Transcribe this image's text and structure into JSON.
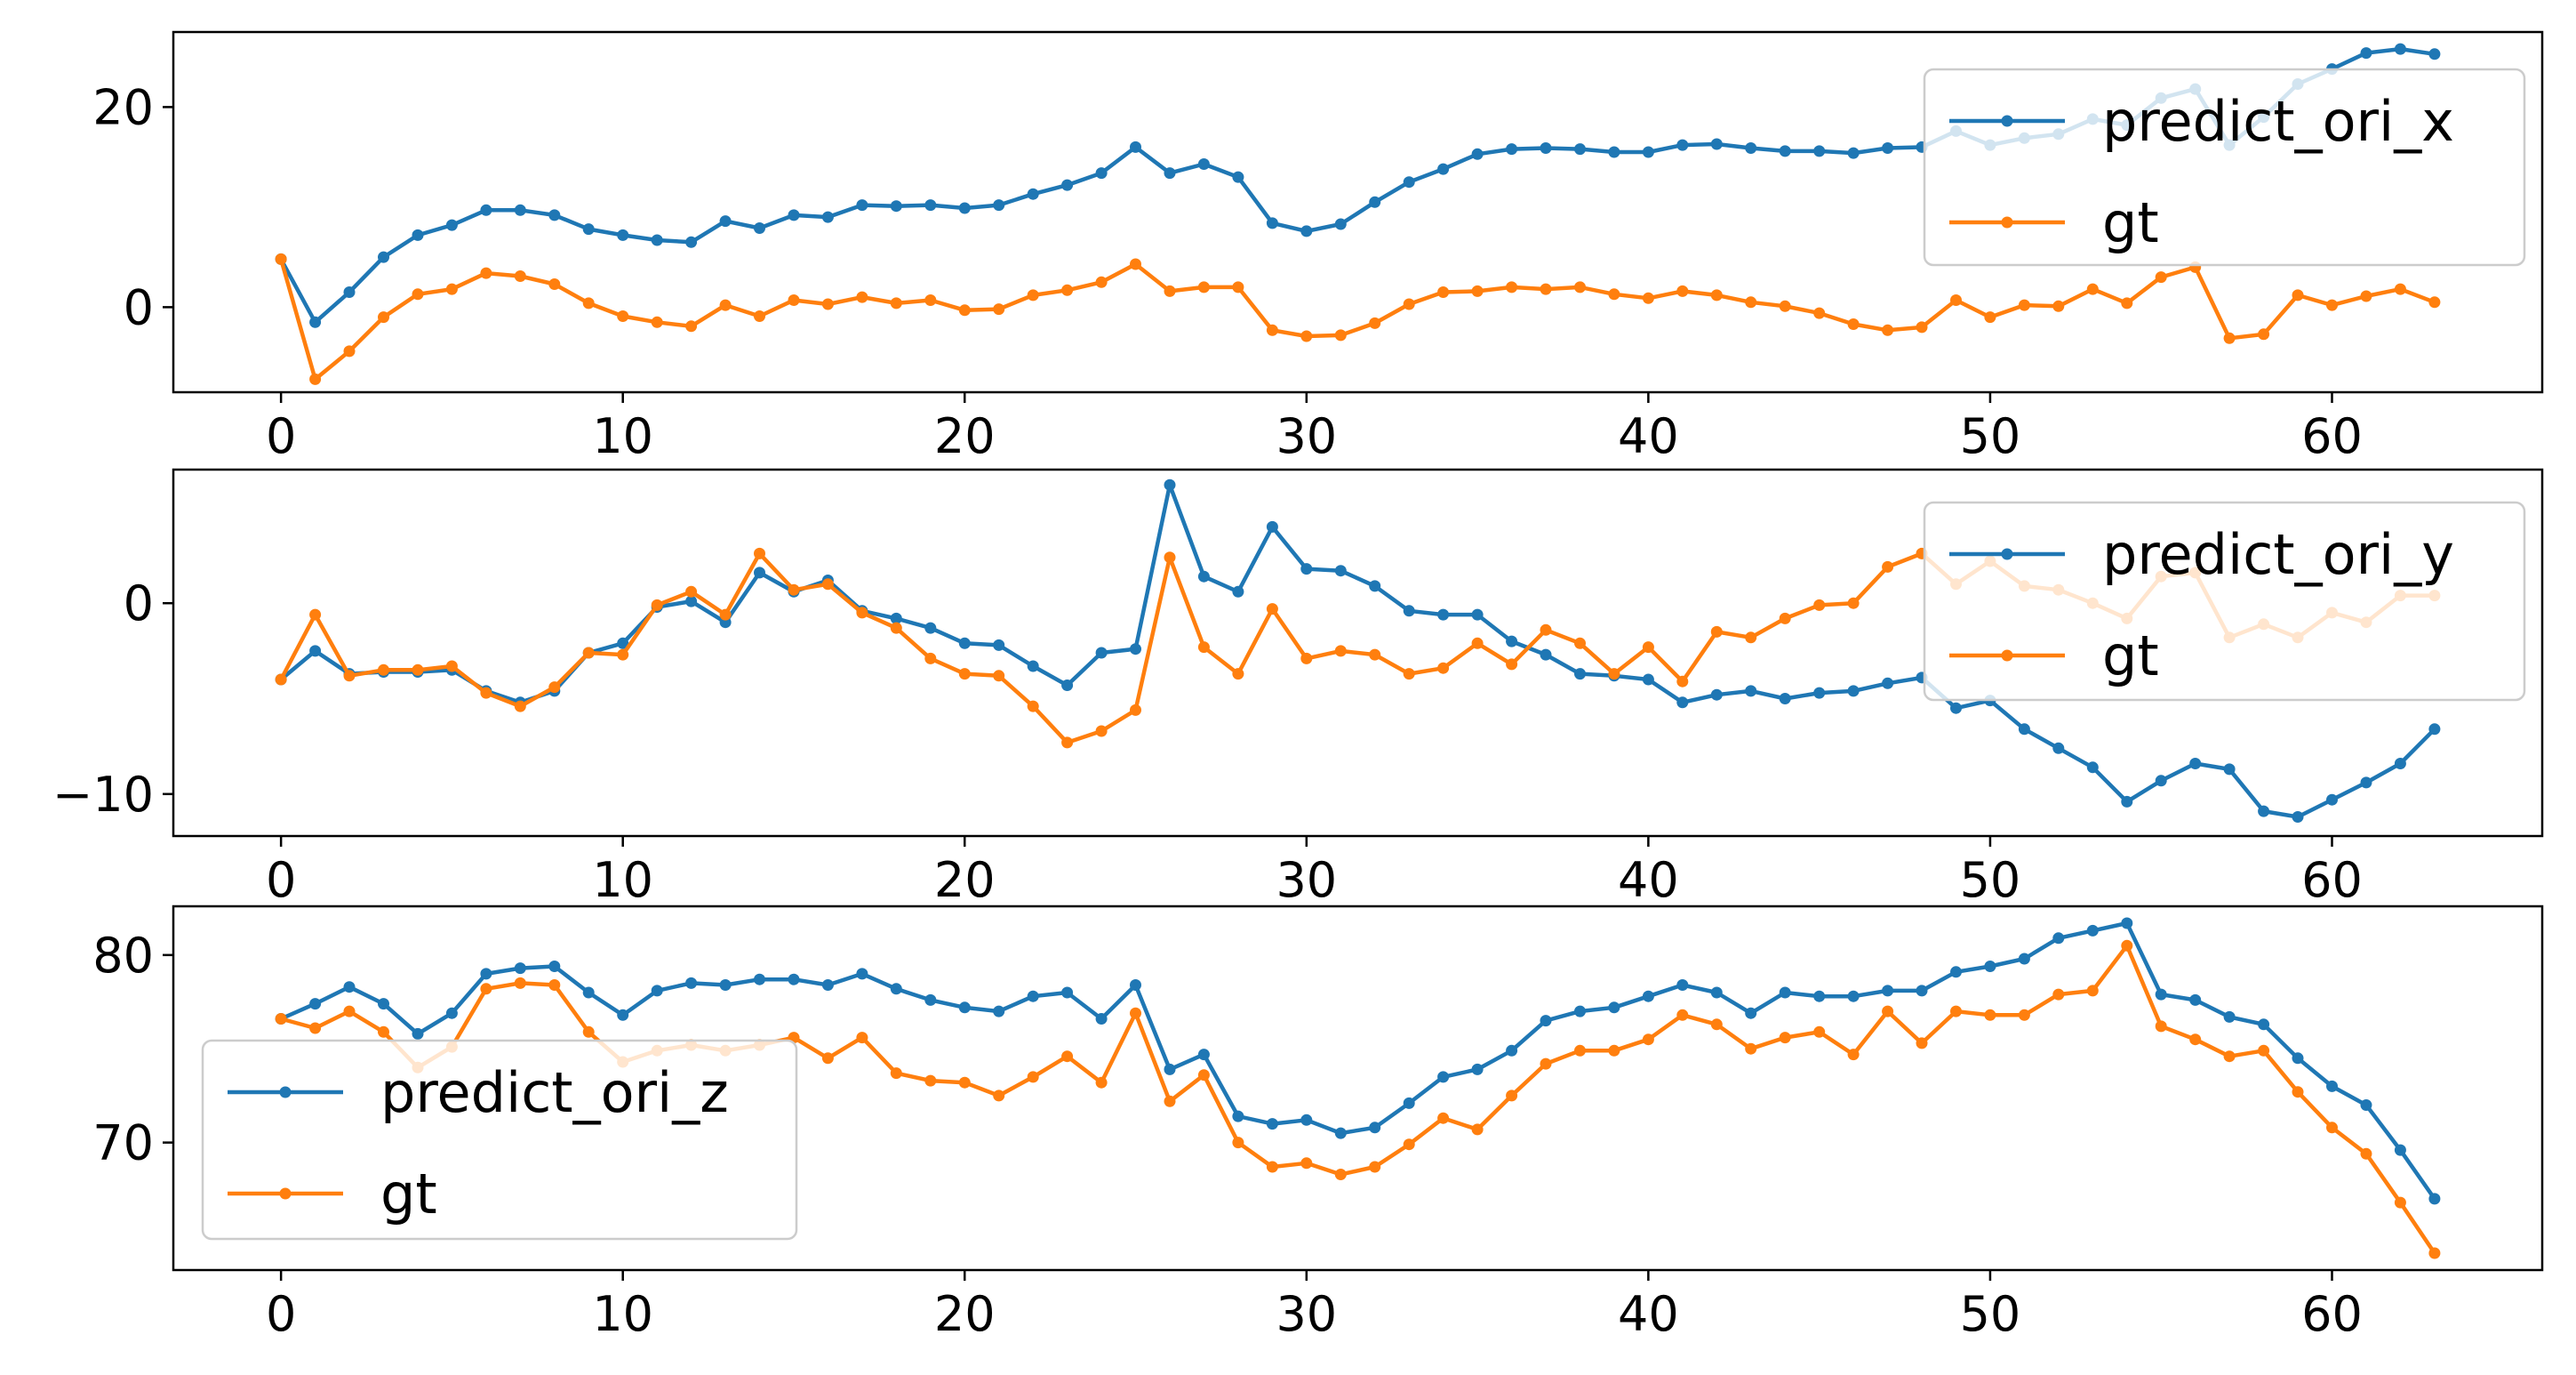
{
  "colors": {
    "predict": "#1f77b4",
    "gt": "#ff7f0e",
    "axis": "#000000",
    "legend_edge": "#cccccc"
  },
  "chart_data": [
    {
      "type": "line",
      "title": "",
      "xlabel": "",
      "ylabel": "",
      "xlim": [
        -3.15,
        66.15
      ],
      "ylim": [
        -8.5,
        27.5
      ],
      "xticks": [
        0,
        10,
        20,
        30,
        40,
        50,
        60
      ],
      "yticks": [
        0,
        20
      ],
      "grid": false,
      "legend_position": "upper right",
      "series": [
        {
          "name": "predict_ori_x",
          "color_key": "predict",
          "values": [
            4.8,
            -1.5,
            1.5,
            5,
            7.2,
            8.2,
            9.7,
            9.7,
            9.2,
            7.8,
            7.2,
            6.7,
            6.5,
            8.6,
            7.9,
            9.2,
            9,
            10.2,
            10.1,
            10.2,
            9.9,
            10.2,
            11.3,
            12.2,
            13.4,
            16,
            13.4,
            14.3,
            13,
            8.4,
            7.6,
            8.3,
            10.5,
            12.5,
            13.8,
            15.3,
            15.8,
            15.9,
            15.8,
            15.5,
            15.5,
            16.2,
            16.3,
            15.9,
            15.6,
            15.6,
            15.4,
            15.9,
            16,
            17.6,
            16.2,
            16.9,
            17.3,
            18.8,
            18.2,
            20.9,
            21.8,
            16.2,
            19,
            22.3,
            23.8,
            25.4,
            25.8,
            25.3
          ]
        },
        {
          "name": "gt",
          "color_key": "gt",
          "values": [
            4.8,
            -7.2,
            -4.4,
            -1,
            1.3,
            1.8,
            3.4,
            3.1,
            2.3,
            0.4,
            -0.9,
            -1.5,
            -1.9,
            0.2,
            -0.9,
            0.7,
            0.3,
            1.0,
            0.4,
            0.7,
            -0.3,
            -0.2,
            1.2,
            1.7,
            2.5,
            4.3,
            1.6,
            2.0,
            2.0,
            -2.3,
            -2.9,
            -2.8,
            -1.6,
            0.3,
            1.5,
            1.6,
            2.0,
            1.8,
            2.0,
            1.3,
            0.9,
            1.6,
            1.2,
            0.5,
            0.1,
            -0.6,
            -1.7,
            -2.3,
            -2.0,
            0.7,
            -1.0,
            0.2,
            0.1,
            1.8,
            0.4,
            3.0,
            4.0,
            -3.1,
            -2.7,
            1.2,
            0.2,
            1.1,
            1.8,
            0.5
          ]
        }
      ]
    },
    {
      "type": "line",
      "title": "",
      "xlabel": "",
      "ylabel": "",
      "xlim": [
        -3.15,
        66.15
      ],
      "ylim": [
        -12.2,
        7.0
      ],
      "xticks": [
        0,
        10,
        20,
        30,
        40,
        50,
        60
      ],
      "yticks": [
        -10,
        0
      ],
      "grid": false,
      "legend_position": "upper right",
      "series": [
        {
          "name": "predict_ori_y",
          "color_key": "predict",
          "values": [
            -4.0,
            -2.5,
            -3.7,
            -3.6,
            -3.6,
            -3.5,
            -4.6,
            -5.2,
            -4.6,
            -2.6,
            -2.1,
            -0.2,
            0.1,
            -1.0,
            1.6,
            0.6,
            1.2,
            -0.4,
            -0.8,
            -1.3,
            -2.1,
            -2.2,
            -3.3,
            -4.3,
            -2.6,
            -2.4,
            6.2,
            1.4,
            0.6,
            4.0,
            1.8,
            1.7,
            0.9,
            -0.4,
            -0.6,
            -0.6,
            -2.0,
            -2.7,
            -3.7,
            -3.8,
            -4.0,
            -5.2,
            -4.8,
            -4.6,
            -5.0,
            -4.7,
            -4.6,
            -4.2,
            -3.9,
            -5.5,
            -5.1,
            -6.6,
            -7.6,
            -8.6,
            -10.4,
            -9.3,
            -8.4,
            -8.7,
            -10.9,
            -11.2,
            -10.3,
            -9.4,
            -8.4,
            -6.6
          ]
        },
        {
          "name": "gt",
          "color_key": "gt",
          "values": [
            -4.0,
            -0.6,
            -3.8,
            -3.5,
            -3.5,
            -3.3,
            -4.7,
            -5.4,
            -4.4,
            -2.6,
            -2.7,
            -0.1,
            0.6,
            -0.6,
            2.6,
            0.7,
            1.0,
            -0.5,
            -1.3,
            -2.9,
            -3.7,
            -3.8,
            -5.4,
            -7.3,
            -6.7,
            -5.6,
            2.4,
            -2.3,
            -3.7,
            -0.3,
            -2.9,
            -2.5,
            -2.7,
            -3.7,
            -3.4,
            -2.1,
            -3.2,
            -1.4,
            -2.1,
            -3.7,
            -2.3,
            -4.1,
            -1.5,
            -1.8,
            -0.8,
            -0.1,
            0,
            1.9,
            2.6,
            1.0,
            2.2,
            0.9,
            0.7,
            0,
            -0.8,
            1.4,
            1.6,
            -1.8,
            -1.1,
            -1.8,
            -0.5,
            -1.0,
            0.4,
            0.4
          ]
        }
      ]
    },
    {
      "type": "line",
      "title": "",
      "xlabel": "",
      "ylabel": "",
      "xlim": [
        -3.15,
        66.15
      ],
      "ylim": [
        63.2,
        82.6
      ],
      "xticks": [
        0,
        10,
        20,
        30,
        40,
        50,
        60
      ],
      "yticks": [
        70,
        80
      ],
      "grid": false,
      "legend_position": "center left",
      "series": [
        {
          "name": "predict_ori_z",
          "color_key": "predict",
          "values": [
            76.6,
            77.4,
            78.3,
            77.4,
            75.8,
            76.9,
            79.0,
            79.3,
            79.4,
            78.0,
            76.8,
            78.1,
            78.5,
            78.4,
            78.7,
            78.7,
            78.4,
            79.0,
            78.2,
            77.6,
            77.2,
            77.0,
            77.8,
            78.0,
            76.6,
            78.4,
            73.9,
            74.7,
            71.4,
            71.0,
            71.2,
            70.5,
            70.8,
            72.1,
            73.5,
            73.9,
            74.9,
            76.5,
            77.0,
            77.2,
            77.8,
            78.4,
            78.0,
            76.9,
            78.0,
            77.8,
            77.8,
            78.1,
            78.1,
            79.1,
            79.4,
            79.8,
            80.9,
            81.3,
            81.7,
            77.9,
            77.6,
            76.7,
            76.3,
            74.5,
            73.0,
            72.0,
            69.6,
            67.0
          ]
        },
        {
          "name": "gt",
          "color_key": "gt",
          "values": [
            76.6,
            76.1,
            77.0,
            75.9,
            74.0,
            75.1,
            78.2,
            78.5,
            78.4,
            75.9,
            74.3,
            74.9,
            75.2,
            74.9,
            75.2,
            75.6,
            74.5,
            75.6,
            73.7,
            73.3,
            73.2,
            72.5,
            73.5,
            74.6,
            73.2,
            76.9,
            72.2,
            73.6,
            70.0,
            68.7,
            68.9,
            68.3,
            68.7,
            69.9,
            71.3,
            70.7,
            72.5,
            74.2,
            74.9,
            74.9,
            75.5,
            76.8,
            76.3,
            75.0,
            75.6,
            75.9,
            74.7,
            77.0,
            75.3,
            77.0,
            76.8,
            76.8,
            77.9,
            78.1,
            80.5,
            76.2,
            75.5,
            74.6,
            74.9,
            72.7,
            70.8,
            69.4,
            66.8,
            64.1
          ]
        }
      ]
    }
  ]
}
